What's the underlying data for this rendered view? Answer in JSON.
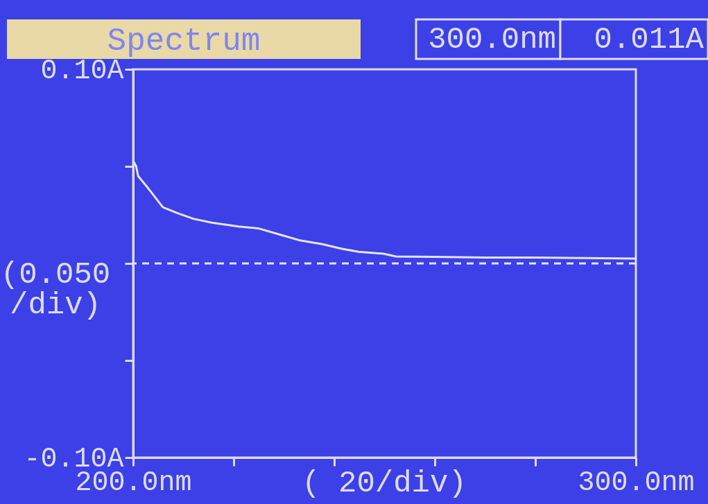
{
  "chart_data": {
    "type": "line",
    "title": "Spectrum",
    "x": [
      200,
      200.6,
      201,
      202.6,
      203.8,
      205.9,
      208.7,
      212,
      215.7,
      221,
      225,
      229,
      233,
      237.5,
      241.6,
      244.9,
      249.8,
      252.3,
      260,
      270,
      280,
      290,
      300
    ],
    "series": [
      {
        "color": "#e4e4f4",
        "values": [
          0.053,
          0.05,
          0.045,
          0.04,
          0.036,
          0.029,
          0.026,
          0.023,
          0.021,
          0.019,
          0.018,
          0.015,
          0.012,
          0.01,
          0.0075,
          0.006,
          0.005,
          0.0036,
          0.0034,
          0.003,
          0.003,
          0.0028,
          0.0025
        ]
      }
    ],
    "xlim": [
      200,
      300
    ],
    "ylim": [
      -0.1,
      0.1
    ],
    "xticks": [
      {
        "value": 200,
        "label": "200.0nm"
      },
      {
        "value": 220,
        "label": null
      },
      {
        "value": 240,
        "label": null
      },
      {
        "value": 260,
        "label": null
      },
      {
        "value": 280,
        "label": null
      },
      {
        "value": 300,
        "label": "300.0nm"
      }
    ],
    "yticks": [
      {
        "value": -0.1,
        "label": "-0.10A"
      },
      {
        "value": -0.05,
        "label": null
      },
      {
        "value": 0,
        "label": null
      },
      {
        "value": 0.05,
        "label": null
      },
      {
        "value": 0.1,
        "label": "0.10A"
      }
    ],
    "ref_lines": [
      {
        "axis": "y",
        "value": 0,
        "color": "#e4e4f4",
        "line_style": "dashed"
      }
    ],
    "annotations": [
      "300.0nm",
      "0.011A",
      "(0.050 /div)",
      "( 20/div)"
    ],
    "grid": false,
    "marker": "none",
    "line_style": "solid"
  }
}
